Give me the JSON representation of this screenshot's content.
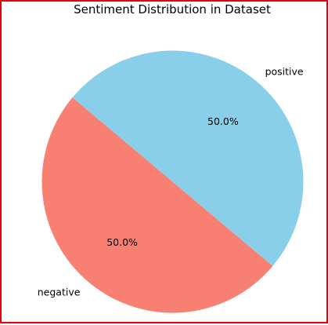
{
  "chart_data": {
    "type": "pie",
    "title": "Sentiment Distribution in Dataset",
    "slices": [
      {
        "label": "negative",
        "value": 50.0,
        "pct_label": "50.0%",
        "color": "#f88072"
      },
      {
        "label": "positive",
        "value": 50.0,
        "pct_label": "50.0%",
        "color": "#89cfe9"
      }
    ],
    "legend": "none"
  },
  "frame": {
    "border_color": "#e8000a"
  }
}
